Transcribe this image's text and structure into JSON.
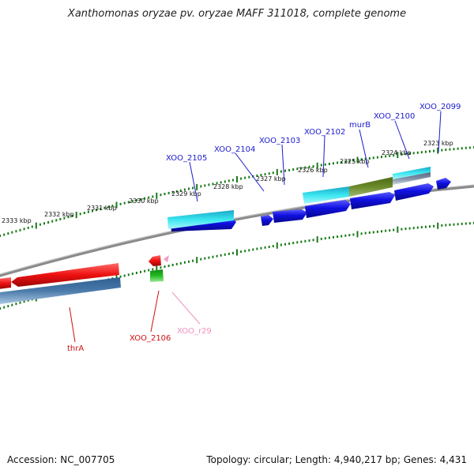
{
  "title": "Xanthomonas oryzae pv. oryzae MAFF 311018, complete genome",
  "footer": {
    "accession": "Accession: NC_007705",
    "topology": "Topology: circular; Length: 4,940,217 bp; Genes: 4,431"
  },
  "colors": {
    "backbone": "#8a8a8a",
    "ticks": "#1a7a1a",
    "gene_blue": "#1010e0",
    "gene_cyan": "#20d8e0",
    "gene_olive": "#6b8a2a",
    "gene_red": "#ee1111",
    "gene_steel": "#4a7aaa",
    "rna_green": "#22bb22",
    "rna_pink": "#f59ac8",
    "label_blue": "#1a1acc",
    "label_red": "#cc1111",
    "label_pink": "#f090c0"
  },
  "scale_labels": [
    "2323 kbp",
    "2324 kbp",
    "2325 kbp",
    "2326 kbp",
    "2327 kbp",
    "2328 kbp",
    "2329 kbp",
    "2330 kbp",
    "2331 kbp",
    "2332 kbp",
    "2333 kbp"
  ],
  "gene_labels": [
    "XOO_2099",
    "XOO_2100",
    "murB",
    "XOO_2102",
    "XOO_2103",
    "XOO_2104",
    "XOO_2105",
    "thrA",
    "XOO_2106",
    "XOO_r29"
  ]
}
